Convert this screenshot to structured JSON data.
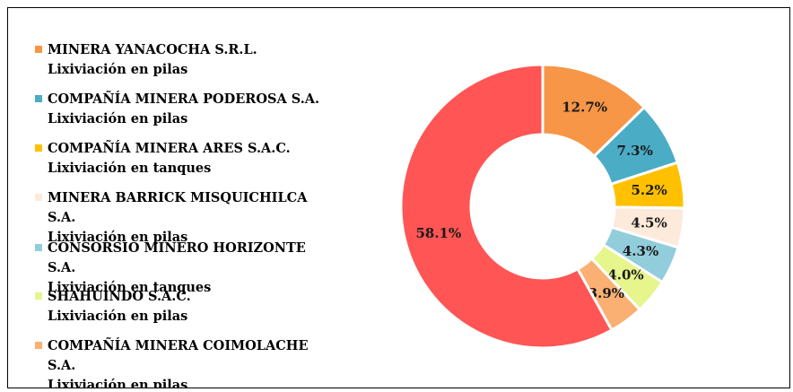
{
  "chart_data": {
    "type": "pie",
    "donut": true,
    "legend_position": "left",
    "title": "",
    "slices": [
      {
        "name": "MINERA YANACOCHA S.R.L.",
        "method": "Lixiviación en pilas",
        "value": 12.7,
        "label": "12.7%",
        "color": "#F79646"
      },
      {
        "name": "COMPAÑÍA MINERA PODEROSA S.A.",
        "method": "Lixiviación en pilas",
        "value": 7.3,
        "label": "7.3%",
        "color": "#4BACC6"
      },
      {
        "name": "COMPAÑÍA MINERA ARES S.A.C.",
        "method": "Lixiviación en tanques",
        "value": 5.2,
        "label": "5.2%",
        "color": "#FFC000"
      },
      {
        "name": "MINERA BARRICK MISQUICHILCA S.A.",
        "method": "Lixiviación en pilas",
        "value": 4.5,
        "label": "4.5%",
        "color": "#FDEADA"
      },
      {
        "name": "CONSORSIO  MINERO HORIZONTE S.A.",
        "method": "Lixiviación en tanques",
        "value": 4.3,
        "label": "4.3%",
        "color": "#92CDDC"
      },
      {
        "name": "SHAHUINDO S.A.C.",
        "method": "Lixiviación en pilas",
        "value": 4.0,
        "label": "4.0%",
        "color": "#E6F58C"
      },
      {
        "name": "COMPAÑÍA MINERA COIMOLACHE S.A.",
        "method": "Lixiviación en pilas",
        "value": 3.9,
        "label": "3.9%",
        "color": "#FAB073"
      },
      {
        "name": "",
        "method": "",
        "value": 58.1,
        "label": "58.1%",
        "color": "#FF5555"
      }
    ]
  }
}
